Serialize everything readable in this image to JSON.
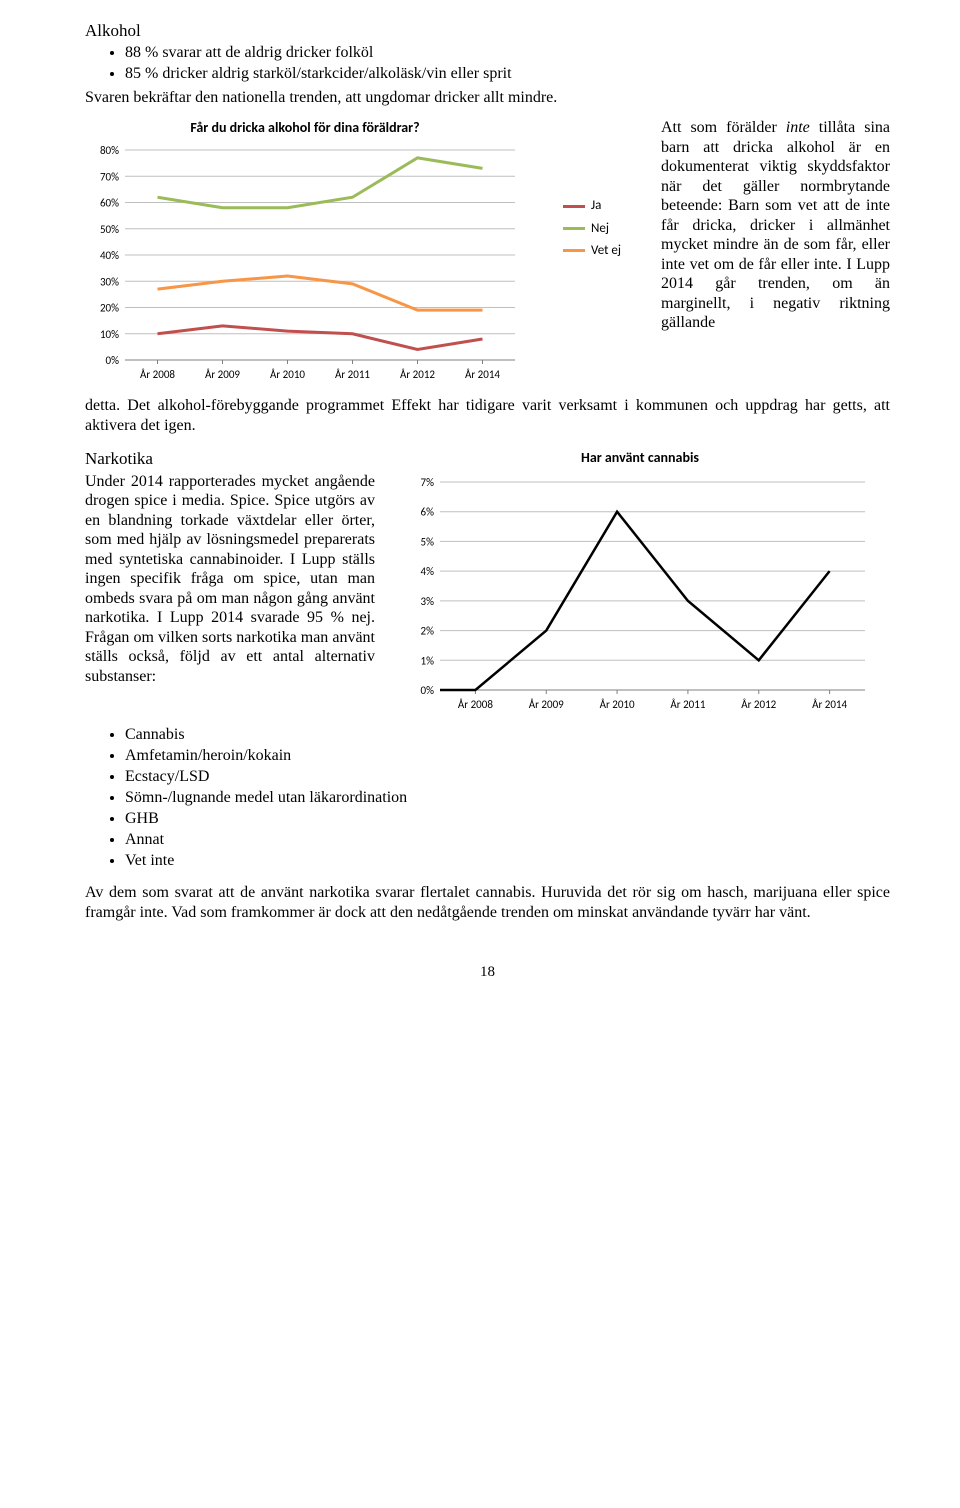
{
  "section1": {
    "title": "Alkohol",
    "bullets": [
      "88 % svarar att de aldrig dricker folköl",
      "85 % dricker aldrig starköl/starkcider/alkoläsk/vin eller sprit"
    ],
    "intro": "Svaren bekräftar den nationella trenden, att ungdomar dricker allt mindre."
  },
  "chart1": {
    "type": "line",
    "title": "Får du dricka alkohol för dina föräldrar?",
    "title_fontsize": 14,
    "title_weight": "bold",
    "categories": [
      "År 2008",
      "År 2009",
      "År 2010",
      "År 2011",
      "År 2012",
      "År 2014"
    ],
    "series": [
      {
        "name": "Ja",
        "color": "#c0504d",
        "values": [
          10,
          13,
          11,
          10,
          4,
          8
        ]
      },
      {
        "name": "Nej",
        "color": "#9bbb59",
        "values": [
          62,
          58,
          58,
          62,
          77,
          73
        ]
      },
      {
        "name": "Vet ej",
        "color": "#f79646",
        "values": [
          27,
          30,
          32,
          29,
          19,
          19
        ]
      }
    ],
    "ylim": [
      0,
      80
    ],
    "ytick_step": 10,
    "background_color": "#ffffff",
    "grid_color": "#bfbfbf",
    "axis_color": "#808080",
    "tick_fontsize": 11,
    "line_width": 3
  },
  "side_text": {
    "prefix": "Att som förälder ",
    "italic": "inte",
    "rest": " tillåta sina barn att dricka alkohol är en dokumenterat viktig skyddsfaktor när det gäller normbrytande beteende: Barn som vet att de inte får dricka, dricker i allmänhet mycket mindre än de som får, eller inte vet om de får eller inte. I Lupp 2014 går trenden, om än marginellt, i negativ riktning gällande"
  },
  "after_chart1": "detta. Det alkohol-förebyggande programmet Effekt har tidigare varit verksamt i kommunen och uppdrag har getts, att aktivera det igen.",
  "section2": {
    "title": "Narkotika",
    "text": "Under 2014 rapporterades mycket angående drogen spice i media. Spice. Spice utgörs av en blandning torkade växtdelar eller örter, som med hjälp av lösningsmedel preparerats med syntetiska cannabinoider. I Lupp ställs ingen specifik fråga om spice, utan man ombeds svara på om man någon gång använt narkotika. I Lupp 2014 svarade 95 % nej. Frågan om vilken sorts narkotika man använt ställs också, följd av ett antal alternativ substanser:",
    "bullets": [
      "Cannabis",
      "Amfetamin/heroin/kokain",
      "Ecstacy/LSD",
      "Sömn-/lugnande medel utan läkarordination",
      "GHB",
      "Annat",
      "Vet inte"
    ]
  },
  "chart2": {
    "type": "line",
    "title": "Har använt cannabis",
    "title_fontsize": 14,
    "title_weight": "bold",
    "categories": [
      "År 2008",
      "År 2009",
      "År 2010",
      "År 2011",
      "År 2012",
      "År 2014"
    ],
    "values": [
      0,
      0,
      2,
      6,
      3,
      1,
      4
    ],
    "series_years_for_values": [
      "offset",
      "År 2008",
      "År 2009",
      "År 2010",
      "År 2011",
      "År 2012",
      "År 2014"
    ],
    "color": "#000000",
    "ylim": [
      0,
      7
    ],
    "ytick_step": 1,
    "background_color": "#ffffff",
    "grid_color": "#bfbfbf",
    "axis_color": "#808080",
    "tick_fontsize": 11,
    "line_width": 2.5
  },
  "final": "Av dem som svarat att de använt narkotika svarar flertalet cannabis. Huruvida det rör sig om hasch, marijuana eller spice framgår inte. Vad som framkommer är dock att den nedåtgående trenden om minskat användande tyvärr har vänt.",
  "page_number": "18"
}
